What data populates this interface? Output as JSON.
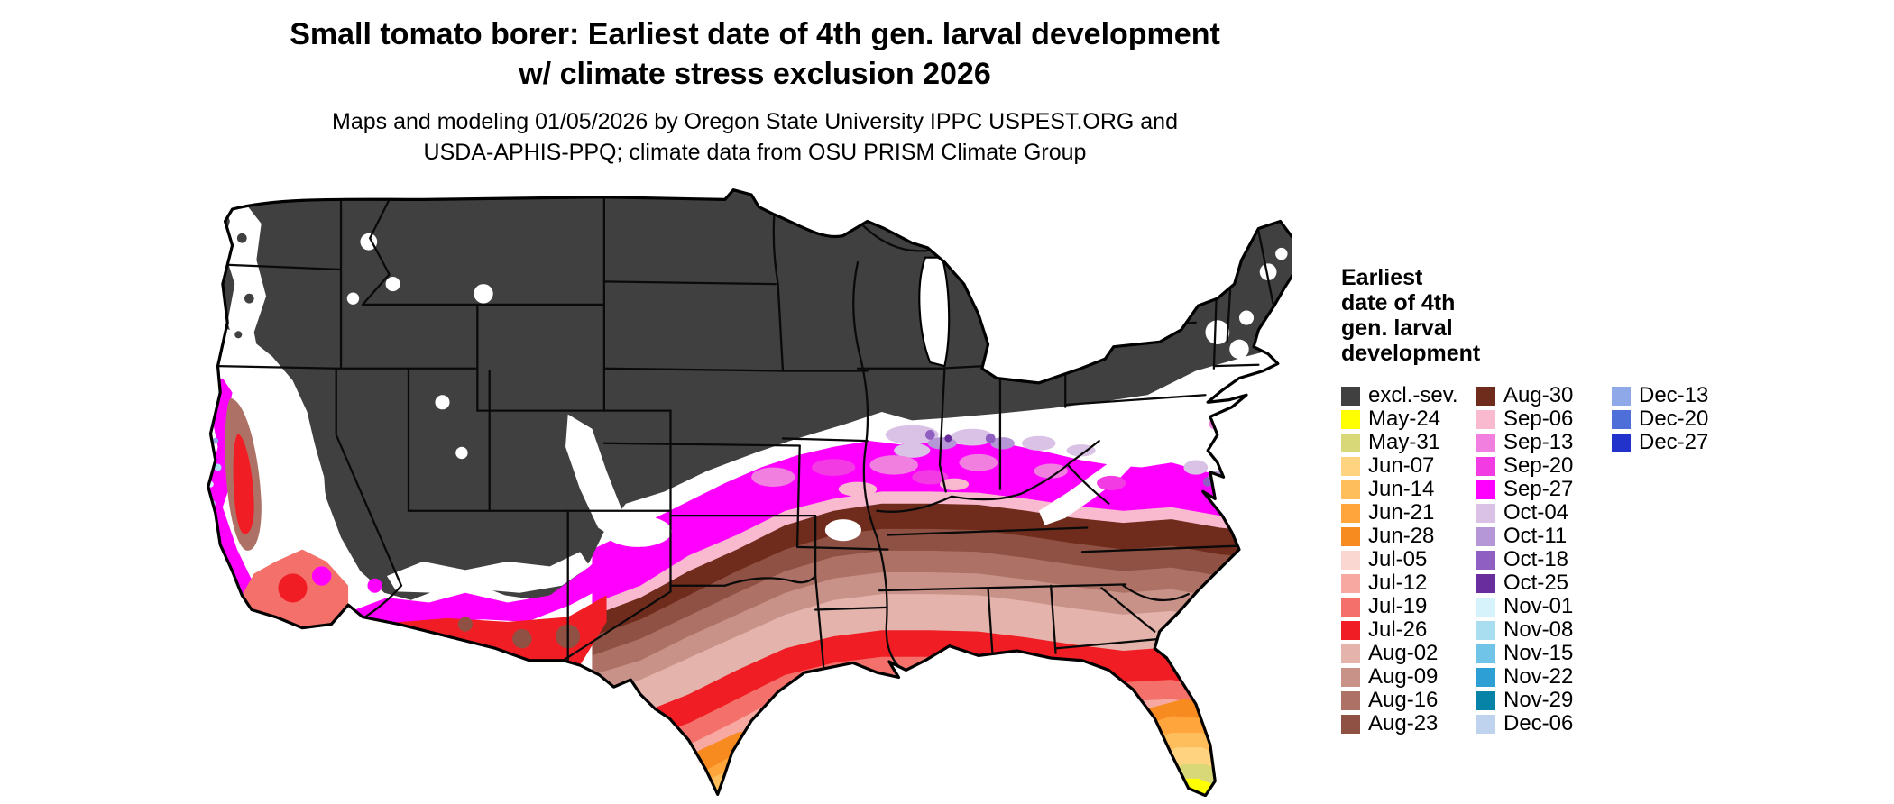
{
  "title": "Small tomato borer: Earliest date of 4th gen. larval development\nw/ climate stress exclusion 2026",
  "subtitle": "Maps and modeling 01/05/2026 by Oregon State University IPPC USPEST.ORG and\nUSDA-APHIS-PPQ; climate data from OSU PRISM Climate Group",
  "legend": {
    "title": "Earliest\ndate of 4th\ngen. larval\ndevelopment",
    "entries": [
      {
        "label": "excl.-sev.",
        "color": "#404040"
      },
      {
        "label": "May-24",
        "color": "#FFFF00"
      },
      {
        "label": "May-31",
        "color": "#D8D878"
      },
      {
        "label": "Jun-07",
        "color": "#FFD37F"
      },
      {
        "label": "Jun-14",
        "color": "#FFBE5C"
      },
      {
        "label": "Jun-21",
        "color": "#FFA53C"
      },
      {
        "label": "Jun-28",
        "color": "#F78B1F"
      },
      {
        "label": "Jul-05",
        "color": "#FAD7D0"
      },
      {
        "label": "Jul-12",
        "color": "#F7A8A0"
      },
      {
        "label": "Jul-19",
        "color": "#F4716B"
      },
      {
        "label": "Jul-26",
        "color": "#F01E24"
      },
      {
        "label": "Aug-02",
        "color": "#E3B3AC"
      },
      {
        "label": "Aug-09",
        "color": "#C99289"
      },
      {
        "label": "Aug-16",
        "color": "#AD7265"
      },
      {
        "label": "Aug-23",
        "color": "#8F5143"
      },
      {
        "label": "Aug-30",
        "color": "#6F2C1C"
      },
      {
        "label": "Sep-06",
        "color": "#F9B9CF"
      },
      {
        "label": "Sep-13",
        "color": "#F07FE0"
      },
      {
        "label": "Sep-20",
        "color": "#F23BE3"
      },
      {
        "label": "Sep-27",
        "color": "#FF00FF"
      },
      {
        "label": "Oct-04",
        "color": "#D9C2E6"
      },
      {
        "label": "Oct-11",
        "color": "#B596D6"
      },
      {
        "label": "Oct-18",
        "color": "#8F5FC2"
      },
      {
        "label": "Oct-25",
        "color": "#6A2D9E"
      },
      {
        "label": "Nov-01",
        "color": "#D6F2FA"
      },
      {
        "label": "Nov-08",
        "color": "#A8DEF0"
      },
      {
        "label": "Nov-15",
        "color": "#6FC4E8"
      },
      {
        "label": "Nov-22",
        "color": "#2E9FD4"
      },
      {
        "label": "Nov-29",
        "color": "#0883A8"
      },
      {
        "label": "Dec-06",
        "color": "#BFD3EE"
      },
      {
        "label": "Dec-13",
        "color": "#8FA8E8"
      },
      {
        "label": "Dec-20",
        "color": "#4F6FD8"
      },
      {
        "label": "Dec-27",
        "color": "#2233CC"
      }
    ],
    "columns": [
      15,
      15,
      3
    ]
  }
}
